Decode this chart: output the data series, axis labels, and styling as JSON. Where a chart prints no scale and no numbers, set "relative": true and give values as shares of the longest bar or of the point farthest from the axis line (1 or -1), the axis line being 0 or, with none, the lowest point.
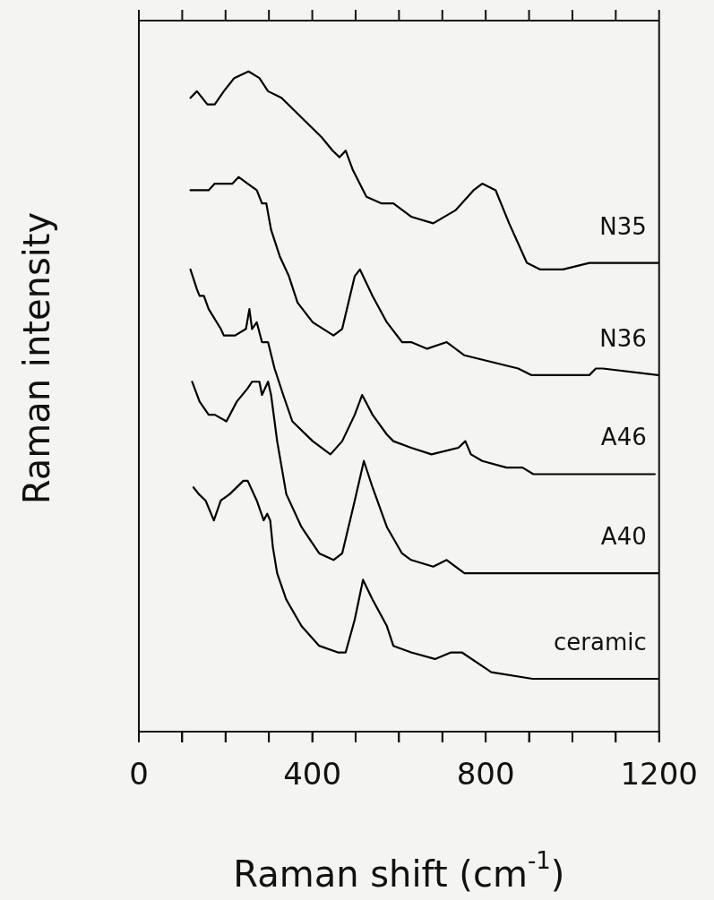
{
  "chart_data": {
    "type": "line",
    "relative": true,
    "xlabel": "Raman shift (cm$^{-1}$)",
    "ylabel": "Raman intensity",
    "xlim": [
      0,
      1200
    ],
    "xticks": [
      0,
      {
        "value": 100,
        "label": null
      },
      {
        "value": 200,
        "label": null
      },
      {
        "value": 300,
        "label": null
      },
      400,
      {
        "value": 500,
        "label": null
      },
      {
        "value": 600,
        "label": null
      },
      {
        "value": 700,
        "label": null
      },
      800,
      {
        "value": 900,
        "label": null
      },
      {
        "value": 1000,
        "label": null
      },
      {
        "value": 1100,
        "label": null
      },
      1200
    ],
    "grid": false,
    "legend": false,
    "marker": "none",
    "line_style": "solid",
    "series": [
      {
        "name": "N35",
        "color": "#000000",
        "x": [
          119,
          134,
          158,
          175,
          196,
          220,
          253,
          278,
          298,
          329,
          360,
          391,
          422,
          447,
          463,
          477,
          494,
          525,
          560,
          587,
          628,
          679,
          731,
          772,
          792,
          823,
          854,
          895,
          926,
          978,
          1039,
          1043,
          1060,
          1122,
          1198
        ],
        "values": [
          0.96,
          0.97,
          0.95,
          0.95,
          0.97,
          0.99,
          1,
          0.99,
          0.97,
          0.96,
          0.94,
          0.92,
          0.9,
          0.88,
          0.87,
          0.88,
          0.85,
          0.81,
          0.8,
          0.8,
          0.78,
          0.77,
          0.79,
          0.82,
          0.83,
          0.82,
          0.77,
          0.71,
          0.7,
          0.7,
          0.71,
          0.71,
          0.71,
          0.71,
          0.71
        ]
      },
      {
        "name": "N36",
        "color": "#000000",
        "x": [
          119,
          130,
          161,
          175,
          189,
          216,
          230,
          251,
          272,
          284,
          294,
          305,
          325,
          346,
          366,
          401,
          449,
          469,
          498,
          510,
          539,
          572,
          607,
          628,
          665,
          710,
          751,
          875,
          906,
          1039,
          1054,
          1070,
          1198
        ],
        "values": [
          0.82,
          0.82,
          0.82,
          0.83,
          0.83,
          0.83,
          0.84,
          0.83,
          0.82,
          0.8,
          0.8,
          0.76,
          0.72,
          0.69,
          0.65,
          0.62,
          0.6,
          0.61,
          0.69,
          0.7,
          0.66,
          0.62,
          0.59,
          0.59,
          0.58,
          0.59,
          0.57,
          0.55,
          0.54,
          0.54,
          0.55,
          0.55,
          0.54
        ]
      },
      {
        "name": "A46",
        "color": "#000000",
        "x": [
          119,
          134,
          140,
          150,
          161,
          189,
          196,
          222,
          247,
          255,
          261,
          272,
          284,
          298,
          313,
          333,
          354,
          401,
          442,
          469,
          498,
          515,
          539,
          572,
          587,
          628,
          675,
          737,
          753,
          766,
          792,
          848,
          875,
          885,
          910,
          930,
          963,
          1013,
          1066,
          1080,
          1091,
          1115,
          1190
        ],
        "values": [
          0.7,
          0.67,
          0.66,
          0.66,
          0.64,
          0.61,
          0.6,
          0.6,
          0.61,
          0.64,
          0.61,
          0.62,
          0.59,
          0.59,
          0.55,
          0.51,
          0.47,
          0.44,
          0.42,
          0.44,
          0.48,
          0.51,
          0.48,
          0.45,
          0.44,
          0.43,
          0.42,
          0.43,
          0.44,
          0.42,
          0.41,
          0.4,
          0.4,
          0.4,
          0.39,
          0.39,
          0.39,
          0.39,
          0.39,
          0.39,
          0.39,
          0.39,
          0.39
        ]
      },
      {
        "name": "A40",
        "color": "#000000",
        "x": [
          123,
          140,
          161,
          175,
          202,
          226,
          251,
          261,
          278,
          284,
          298,
          305,
          319,
          340,
          375,
          416,
          449,
          469,
          498,
          519,
          539,
          572,
          607,
          628,
          679,
          710,
          751,
          875,
          957,
          1039,
          1080,
          1198
        ],
        "values": [
          0.53,
          0.5,
          0.48,
          0.48,
          0.47,
          0.5,
          0.52,
          0.53,
          0.53,
          0.51,
          0.53,
          0.51,
          0.44,
          0.36,
          0.31,
          0.27,
          0.26,
          0.27,
          0.35,
          0.41,
          0.37,
          0.31,
          0.27,
          0.26,
          0.25,
          0.26,
          0.24,
          0.24,
          0.24,
          0.24,
          0.24,
          0.24
        ]
      },
      {
        "name": "ceramic",
        "color": "#000000",
        "x": [
          126,
          138,
          154,
          173,
          189,
          210,
          241,
          251,
          272,
          288,
          296,
          303,
          309,
          319,
          340,
          375,
          416,
          459,
          477,
          498,
          517,
          539,
          572,
          587,
          628,
          683,
          720,
          745,
          813,
          908,
          1019,
          1200
        ],
        "values": [
          0.37,
          0.36,
          0.35,
          0.32,
          0.35,
          0.36,
          0.38,
          0.38,
          0.35,
          0.32,
          0.33,
          0.32,
          0.28,
          0.24,
          0.2,
          0.16,
          0.13,
          0.12,
          0.12,
          0.17,
          0.23,
          0.2,
          0.16,
          0.13,
          0.12,
          0.11,
          0.12,
          0.12,
          0.09,
          0.08,
          0.08,
          0.08
        ]
      }
    ]
  }
}
